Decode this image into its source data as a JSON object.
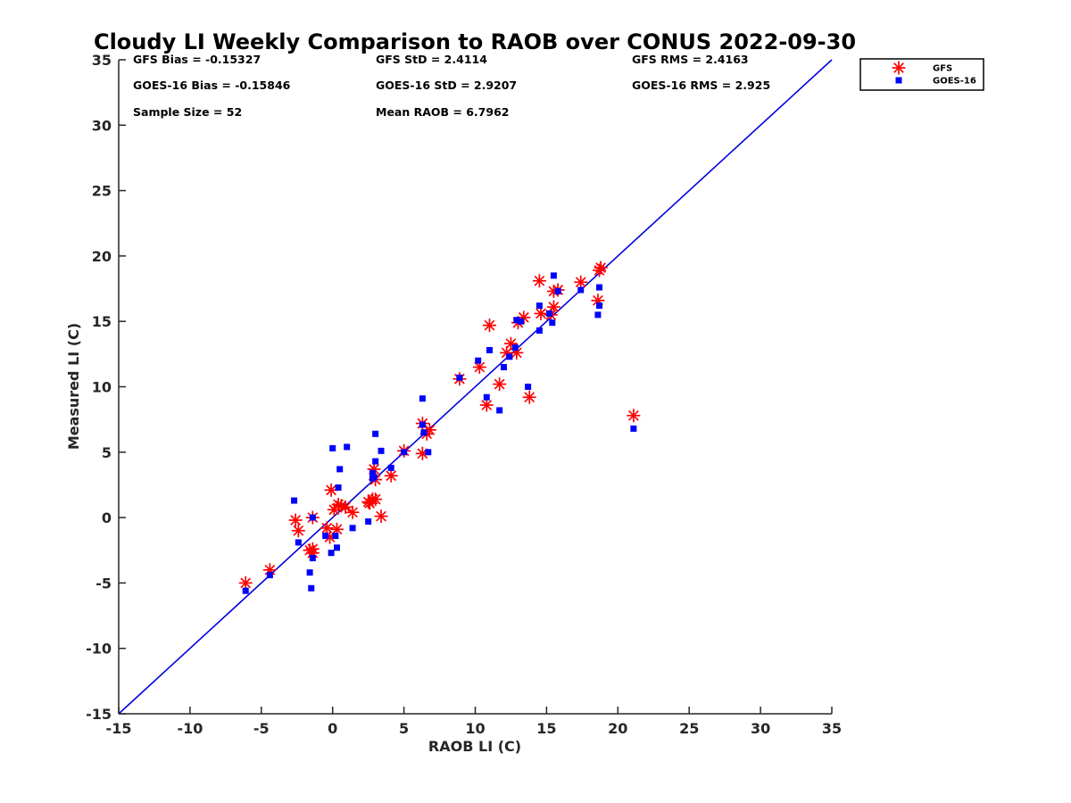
{
  "chart_data": {
    "type": "scatter",
    "title": "Cloudy LI Weekly Comparison to RAOB over CONUS 2022-09-30",
    "xlabel": "RAOB LI (C)",
    "ylabel": "Measured LI (C)",
    "xlim": [
      -15,
      35
    ],
    "ylim": [
      -15,
      35
    ],
    "xticks": [
      -15,
      -10,
      -5,
      0,
      5,
      10,
      15,
      20,
      25,
      30,
      35
    ],
    "yticks": [
      -15,
      -10,
      -5,
      0,
      5,
      10,
      15,
      20,
      25,
      30,
      35
    ],
    "grid": false,
    "legend_position": "outside-top-right",
    "reference_line": {
      "from": [
        -15,
        -15
      ],
      "to": [
        35,
        35
      ],
      "color": "#0000e0"
    },
    "stats": [
      {
        "text": "GFS Bias = -0.15327"
      },
      {
        "text": "GFS StD = 2.4114"
      },
      {
        "text": "GFS RMS = 2.4163"
      },
      {
        "text": "GOES-16 Bias = -0.15846"
      },
      {
        "text": "GOES-16 StD = 2.9207"
      },
      {
        "text": "GOES-16 RMS = 2.925"
      },
      {
        "text": "Sample Size = 52"
      },
      {
        "text": "Mean RAOB = 6.7962"
      }
    ],
    "series": [
      {
        "name": "GFS",
        "marker": "asterisk",
        "color": "#ff0000",
        "points": [
          [
            -6.1,
            -5.0
          ],
          [
            -4.4,
            -4.0
          ],
          [
            -2.6,
            -0.2
          ],
          [
            -2.4,
            -1.0
          ],
          [
            -1.6,
            -2.5
          ],
          [
            -1.4,
            -2.4
          ],
          [
            -1.4,
            -2.7
          ],
          [
            -1.4,
            0.0
          ],
          [
            -0.4,
            -0.8
          ],
          [
            -0.2,
            -1.5
          ],
          [
            -0.1,
            2.1
          ],
          [
            0.1,
            0.6
          ],
          [
            0.3,
            -0.9
          ],
          [
            0.4,
            1.0
          ],
          [
            0.6,
            0.9
          ],
          [
            0.9,
            0.8
          ],
          [
            1.4,
            0.4
          ],
          [
            2.6,
            1.1
          ],
          [
            2.8,
            1.4
          ],
          [
            2.9,
            3.7
          ],
          [
            3.0,
            1.4
          ],
          [
            3.0,
            2.9
          ],
          [
            3.4,
            0.1
          ],
          [
            4.1,
            3.2
          ],
          [
            5.0,
            5.1
          ],
          [
            6.3,
            4.9
          ],
          [
            6.3,
            7.2
          ],
          [
            6.6,
            6.4
          ],
          [
            6.8,
            6.7
          ],
          [
            8.9,
            10.6
          ],
          [
            10.3,
            11.5
          ],
          [
            10.8,
            8.6
          ],
          [
            11.0,
            14.7
          ],
          [
            11.7,
            10.2
          ],
          [
            12.2,
            12.6
          ],
          [
            12.5,
            13.3
          ],
          [
            12.9,
            12.6
          ],
          [
            13.0,
            14.9
          ],
          [
            13.4,
            15.3
          ],
          [
            13.8,
            9.2
          ],
          [
            14.5,
            18.1
          ],
          [
            14.6,
            15.6
          ],
          [
            15.3,
            15.5
          ],
          [
            15.5,
            16.1
          ],
          [
            15.5,
            17.3
          ],
          [
            15.8,
            17.4
          ],
          [
            17.4,
            18.0
          ],
          [
            18.6,
            16.6
          ],
          [
            18.7,
            18.9
          ],
          [
            18.8,
            19.1
          ],
          [
            21.1,
            7.8
          ],
          [
            2.5,
            1.2
          ]
        ]
      },
      {
        "name": "GOES-16",
        "marker": "square",
        "color": "#0000ff",
        "points": [
          [
            -6.1,
            -5.6
          ],
          [
            -4.4,
            -4.4
          ],
          [
            -2.7,
            1.3
          ],
          [
            -2.4,
            -1.9
          ],
          [
            -1.6,
            -4.2
          ],
          [
            -1.5,
            -5.4
          ],
          [
            -1.4,
            -3.1
          ],
          [
            -1.4,
            0.0
          ],
          [
            -0.5,
            -1.4
          ],
          [
            -0.1,
            -2.7
          ],
          [
            0.0,
            5.3
          ],
          [
            0.2,
            -1.4
          ],
          [
            0.3,
            -2.3
          ],
          [
            0.4,
            2.3
          ],
          [
            0.5,
            3.7
          ],
          [
            1.0,
            5.4
          ],
          [
            1.4,
            -0.8
          ],
          [
            2.5,
            -0.3
          ],
          [
            2.8,
            3.4
          ],
          [
            2.9,
            3.1
          ],
          [
            3.0,
            4.3
          ],
          [
            3.0,
            6.4
          ],
          [
            3.4,
            5.1
          ],
          [
            4.1,
            3.8
          ],
          [
            5.0,
            5.0
          ],
          [
            6.3,
            9.1
          ],
          [
            6.3,
            7.1
          ],
          [
            6.4,
            6.5
          ],
          [
            6.7,
            5.0
          ],
          [
            8.9,
            10.7
          ],
          [
            10.2,
            12.0
          ],
          [
            10.8,
            9.2
          ],
          [
            11.0,
            12.8
          ],
          [
            11.7,
            8.2
          ],
          [
            12.0,
            11.5
          ],
          [
            12.4,
            12.3
          ],
          [
            12.8,
            13.0
          ],
          [
            12.9,
            15.1
          ],
          [
            13.2,
            15.0
          ],
          [
            13.7,
            10.0
          ],
          [
            14.5,
            16.2
          ],
          [
            14.5,
            14.3
          ],
          [
            15.2,
            15.6
          ],
          [
            15.4,
            14.9
          ],
          [
            15.5,
            18.5
          ],
          [
            15.8,
            17.3
          ],
          [
            17.4,
            17.4
          ],
          [
            18.6,
            15.5
          ],
          [
            18.7,
            16.2
          ],
          [
            18.7,
            17.6
          ],
          [
            21.1,
            6.8
          ],
          [
            2.8,
            3.0
          ]
        ]
      }
    ]
  }
}
